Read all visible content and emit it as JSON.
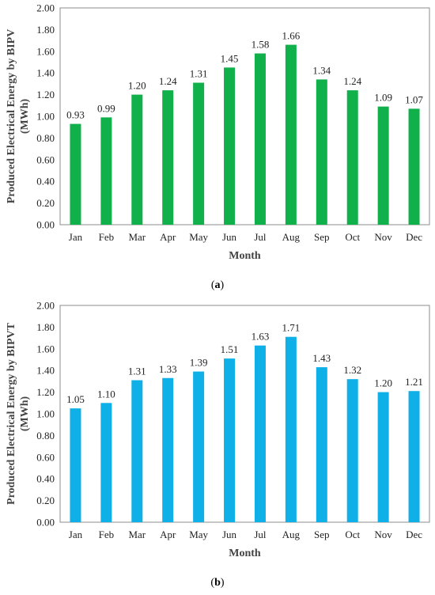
{
  "chart_data": [
    {
      "type": "bar",
      "caption": "a",
      "ylabel_line1": "Produced Electrical Energy by BIPV",
      "ylabel_line2": "(MWh)",
      "xlabel": "Month",
      "ylim": [
        0,
        2
      ],
      "yticks": [
        "0.00",
        "0.20",
        "0.40",
        "0.60",
        "0.80",
        "1.00",
        "1.20",
        "1.40",
        "1.60",
        "1.80",
        "2.00"
      ],
      "categories": [
        "Jan",
        "Feb",
        "Mar",
        "Apr",
        "May",
        "Jun",
        "Jul",
        "Aug",
        "Sep",
        "Oct",
        "Nov",
        "Dec"
      ],
      "values": [
        0.93,
        0.99,
        1.2,
        1.24,
        1.31,
        1.45,
        1.58,
        1.66,
        1.34,
        1.24,
        1.09,
        1.07
      ],
      "value_labels": [
        "0.93",
        "0.99",
        "1.20",
        "1.24",
        "1.31",
        "1.45",
        "1.58",
        "1.66",
        "1.34",
        "1.24",
        "1.09",
        "1.07"
      ],
      "bar_color": "#10b04a",
      "grid": false
    },
    {
      "type": "bar",
      "caption": "b",
      "ylabel_line1": "Produced Electrical Energy by BIPVT",
      "ylabel_line2": "(MWh)",
      "xlabel": "Month",
      "ylim": [
        0,
        2
      ],
      "yticks": [
        "0.00",
        "0.20",
        "0.40",
        "0.60",
        "0.80",
        "1.00",
        "1.20",
        "1.40",
        "1.60",
        "1.80",
        "2.00"
      ],
      "categories": [
        "Jan",
        "Feb",
        "Mar",
        "Apr",
        "May",
        "Jun",
        "Jul",
        "Aug",
        "Sep",
        "Oct",
        "Nov",
        "Dec"
      ],
      "values": [
        1.05,
        1.1,
        1.31,
        1.33,
        1.39,
        1.51,
        1.63,
        1.71,
        1.43,
        1.32,
        1.2,
        1.21
      ],
      "value_labels": [
        "1.05",
        "1.10",
        "1.31",
        "1.33",
        "1.39",
        "1.51",
        "1.63",
        "1.71",
        "1.43",
        "1.32",
        "1.20",
        "1.21"
      ],
      "bar_color": "#0fb0e8",
      "grid": false
    }
  ]
}
